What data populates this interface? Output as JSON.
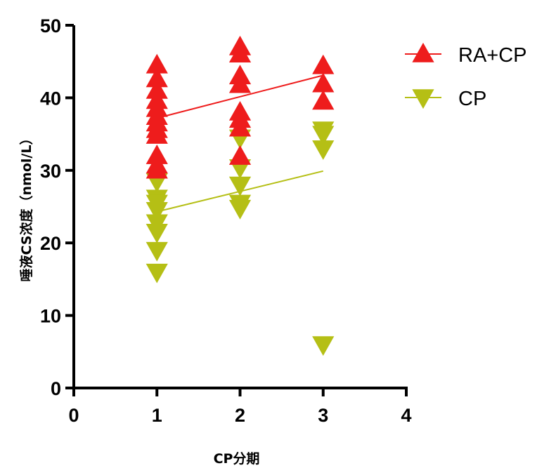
{
  "chart_data": {
    "type": "scatter",
    "xlabel": "CP分期",
    "ylabel": "唾液CS浓度（nmol/L）",
    "xlim": [
      0,
      4
    ],
    "ylim": [
      0,
      50
    ],
    "x_ticks": [
      "0",
      "1",
      "2",
      "3",
      "4"
    ],
    "y_ticks": [
      "0",
      "10",
      "20",
      "30",
      "40",
      "50"
    ],
    "legend_position": "top-right",
    "series": [
      {
        "name": "RA+CP",
        "marker": "triangle-up",
        "color": "#ee1c1c",
        "points": [
          [
            1,
            44.5
          ],
          [
            1,
            42.6
          ],
          [
            1,
            41.0
          ],
          [
            1,
            39.6
          ],
          [
            1,
            38.5
          ],
          [
            1,
            37.4
          ],
          [
            1,
            36.5
          ],
          [
            1,
            35.6
          ],
          [
            1,
            34.8
          ],
          [
            1,
            32.0
          ],
          [
            1,
            30.7
          ],
          [
            1,
            30.0
          ],
          [
            2,
            47.0
          ],
          [
            2,
            46.0
          ],
          [
            2,
            43.0
          ],
          [
            2,
            41.8
          ],
          [
            2,
            38.0
          ],
          [
            2,
            37.0
          ],
          [
            2,
            35.8
          ],
          [
            2,
            31.9
          ],
          [
            3,
            44.4
          ],
          [
            3,
            41.9
          ],
          [
            3,
            39.5
          ]
        ],
        "trendline": {
          "x": [
            1,
            3
          ],
          "y": [
            37.2,
            43.1
          ]
        }
      },
      {
        "name": "CP",
        "marker": "triangle-down",
        "color": "#b5bf15",
        "points": [
          [
            1,
            28.5
          ],
          [
            1,
            26.2
          ],
          [
            1,
            25.5
          ],
          [
            1,
            24.5
          ],
          [
            1,
            22.8
          ],
          [
            1,
            21.5
          ],
          [
            1,
            19.0
          ],
          [
            1,
            16.0
          ],
          [
            2,
            34.5
          ],
          [
            2,
            30.4
          ],
          [
            2,
            28.0
          ],
          [
            2,
            25.5
          ],
          [
            2,
            24.8
          ],
          [
            3,
            35.6
          ],
          [
            3,
            35.0
          ],
          [
            3,
            33.0
          ],
          [
            3,
            6.0
          ]
        ],
        "trendline": {
          "x": [
            1,
            3
          ],
          "y": [
            24.3,
            29.9
          ]
        }
      }
    ]
  }
}
